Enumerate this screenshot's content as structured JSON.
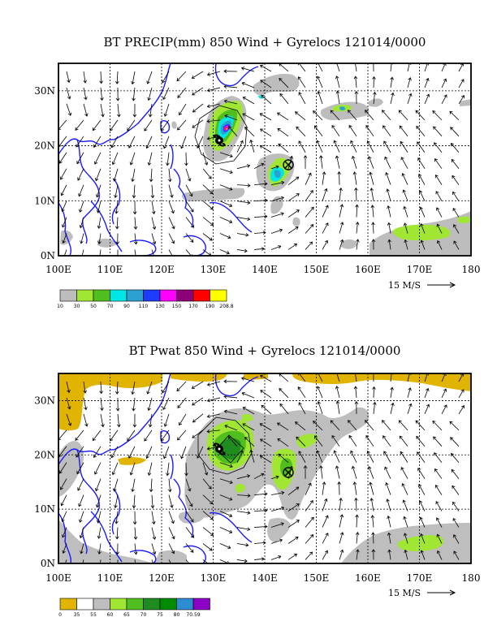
{
  "colors": {
    "coast": "#1a1aff",
    "precip": [
      "#bdbdbd",
      "#a0e632",
      "#50be1e",
      "#00e6e6",
      "#2da0d2",
      "#1e3cff",
      "#ff00ff",
      "#8c0078",
      "#ff0000",
      "#ffff00"
    ],
    "pwat": [
      "#e0b400",
      "#ffffff",
      "#bebebe",
      "#a0e632",
      "#50be1e",
      "#1e8c1e",
      "#008c00",
      "#2d8cd2",
      "#8c00c8"
    ]
  },
  "maps": [
    {
      "title": "BT PRECIP(mm) 850 Wind + Gyrelocs 121014/0000",
      "field": "precip",
      "x_ticks": [
        "100E",
        "110E",
        "120E",
        "130E",
        "140E",
        "150E",
        "160E",
        "170E",
        "180"
      ],
      "y_ticks": [
        "30N",
        "20N",
        "10N",
        "0N"
      ],
      "ref_vector": "15 M/S",
      "colorbar_labels": [
        "10",
        "30",
        "50",
        "70",
        "90",
        "110",
        "130",
        "150",
        "170",
        "190",
        "208.8"
      ],
      "symbols": [
        "typhoon-symbol",
        "gyre-location-marker"
      ]
    },
    {
      "title": "BT Pwat 850 Wind + Gyrelocs 121014/0000",
      "field": "pwat",
      "x_ticks": [
        "100E",
        "110E",
        "120E",
        "130E",
        "140E",
        "150E",
        "160E",
        "170E",
        "180"
      ],
      "y_ticks": [
        "30N",
        "20N",
        "10N",
        "0N"
      ],
      "ref_vector": "15 M/S",
      "colorbar_labels": [
        "0",
        "35",
        "55",
        "60",
        "65",
        "70",
        "75",
        "80",
        "70.59"
      ],
      "symbols": [
        "typhoon-symbol",
        "gyre-location-marker"
      ]
    }
  ]
}
